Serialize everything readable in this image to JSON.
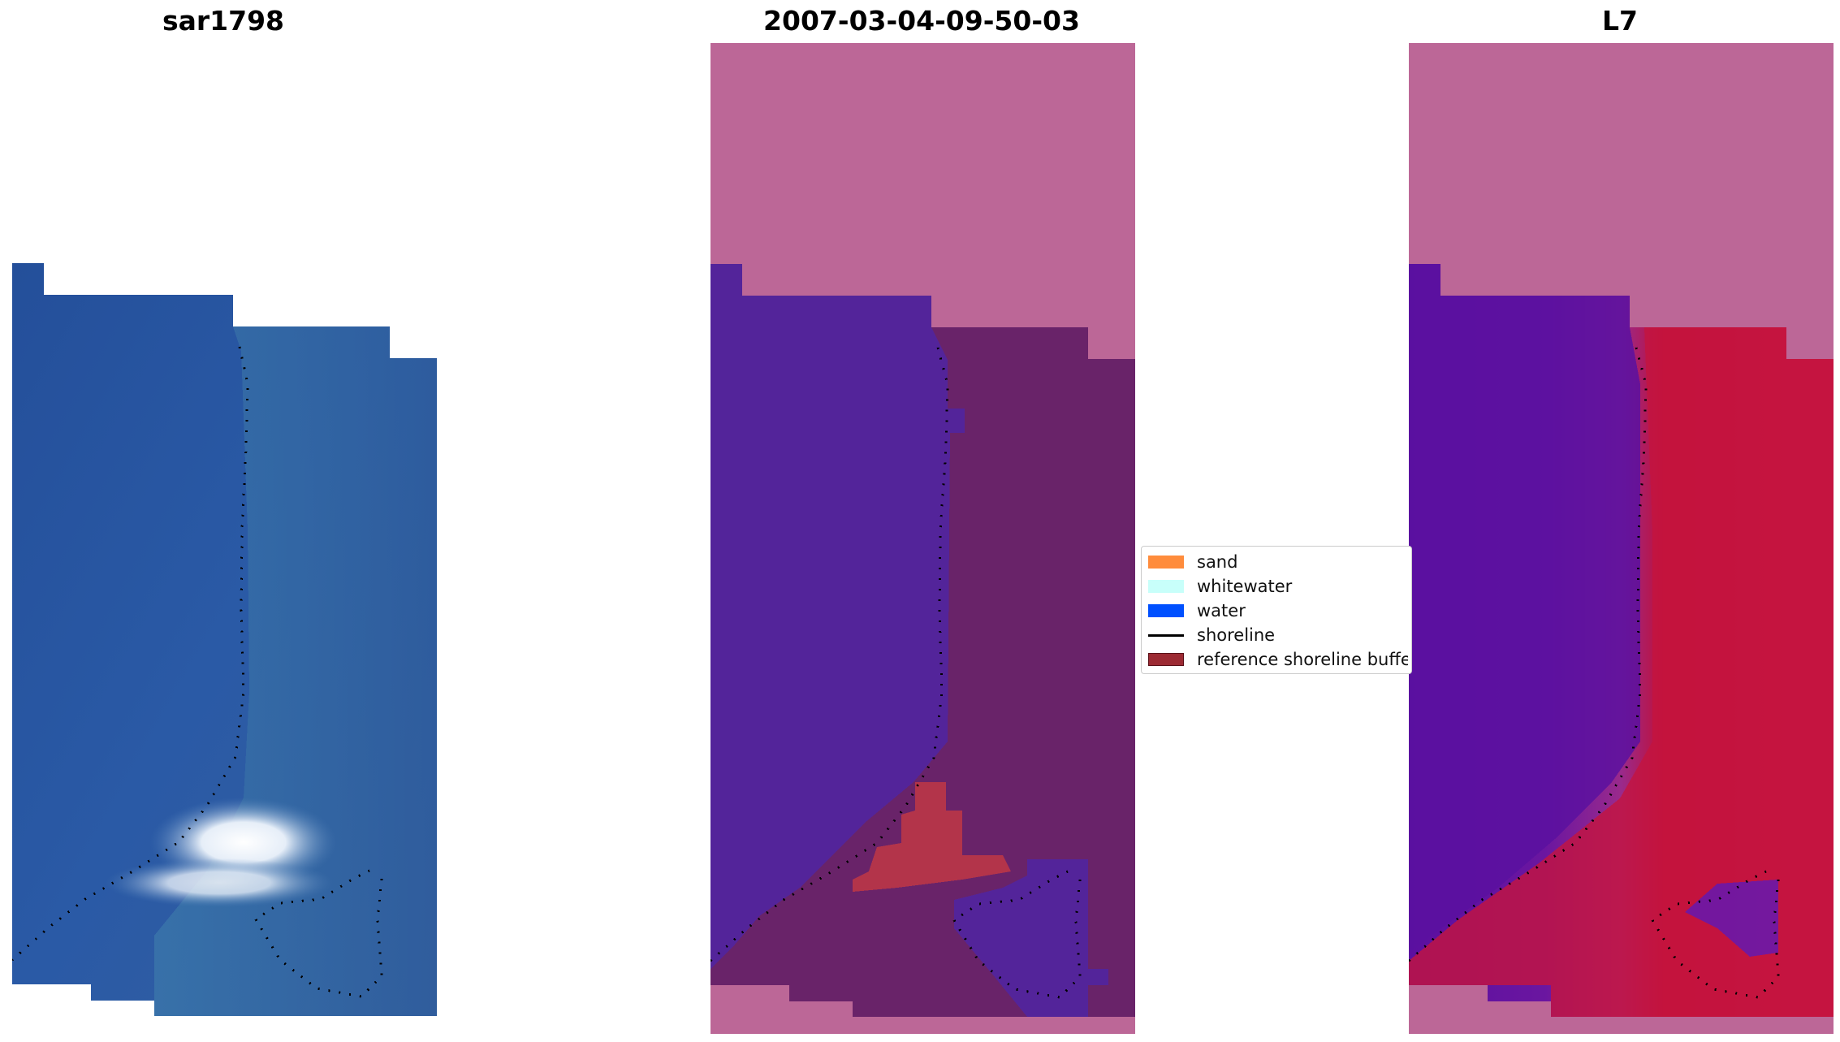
{
  "panels": [
    {
      "title": "sar1798"
    },
    {
      "title": "2007-03-04-09-50-03"
    },
    {
      "title": "L7"
    }
  ],
  "legend": {
    "items": [
      {
        "label": "sand",
        "color": "#ff8c3c",
        "kind": "patch"
      },
      {
        "label": "whitewater",
        "color": "#c8fffa",
        "kind": "patch"
      },
      {
        "label": "water",
        "color": "#0050ff",
        "kind": "patch"
      },
      {
        "label": "shoreline",
        "color": "#000000",
        "kind": "line"
      },
      {
        "label": "reference shoreline buffer",
        "color": "#9c2a33",
        "kind": "patch",
        "edge": "#5a1018"
      }
    ]
  },
  "colors": {
    "background_mask": "#bc6797",
    "water_class": "#53249a",
    "land_class": "#692369",
    "whitewater_class": "#b3344a",
    "rgb_water": "#2d5ea8",
    "rgb_land": "#3e78a8",
    "mndwi_water": "#5b0fa0",
    "mndwi_land": "#c01038"
  }
}
